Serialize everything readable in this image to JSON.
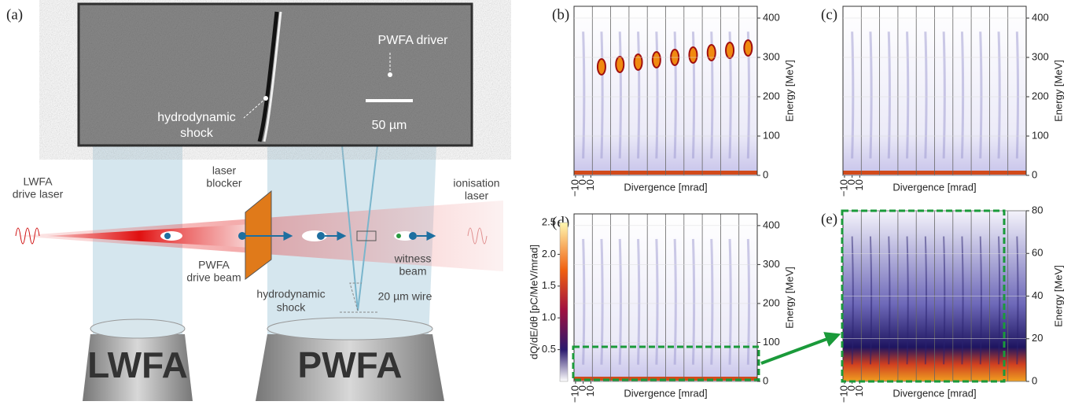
{
  "panel_a": {
    "label": "(a)",
    "inset": {
      "driver": "PWFA driver",
      "shock": [
        "hydrodynamic",
        "shock"
      ],
      "scale": "50 µm"
    },
    "lwfa_laser": [
      "LWFA",
      "drive laser"
    ],
    "blocker": [
      "laser",
      "blocker"
    ],
    "drive_beam": [
      "PWFA",
      "drive beam"
    ],
    "ionisation": [
      "ionisation",
      "laser"
    ],
    "witness": [
      "witness",
      "beam"
    ],
    "shock": [
      "hydrodynamic",
      "shock"
    ],
    "wire": "20 µm wire",
    "stages": [
      "LWFA",
      "PWFA"
    ]
  },
  "panels": [
    {
      "label": "(b)",
      "xlabel": "Divergence [mrad]",
      "ylabel": "Energy [MeV]",
      "ylim": [
        0,
        430
      ],
      "yticks": [
        0,
        100,
        200,
        300,
        400
      ],
      "xlim": [
        -12,
        12
      ],
      "xticks": [
        {
          "value": -10,
          "label": "−10"
        },
        0,
        10
      ]
    },
    {
      "label": "(c)",
      "xlabel": "Divergence [mrad]",
      "ylabel": "Energy [MeV]",
      "ylim": [
        0,
        430
      ],
      "yticks": [
        0,
        100,
        200,
        300,
        400
      ],
      "xlim": [
        -12,
        12
      ],
      "xticks": [
        {
          "value": -10,
          "label": "−10"
        },
        0,
        10
      ]
    },
    {
      "label": "(d)",
      "xlabel": "Divergence [mrad]",
      "ylabel": "Energy [MeV]",
      "ylim": [
        0,
        430
      ],
      "yticks": [
        0,
        100,
        200,
        300,
        400
      ],
      "xlim": [
        -12,
        12
      ],
      "xticks": [
        {
          "value": -10,
          "label": "−10"
        },
        0,
        10
      ]
    },
    {
      "label": "(e)",
      "xlabel": "Divergence [mrad]",
      "ylabel": "Energy [MeV]",
      "ylim": [
        0,
        80
      ],
      "yticks": [
        0,
        20,
        40,
        60,
        80
      ],
      "xlim": [
        -12,
        12
      ],
      "xticks": [
        {
          "value": -10,
          "label": "−10"
        },
        0,
        10
      ]
    }
  ],
  "colorbar": {
    "label": "dQ/dE/dθ [pC/MeV/mrad]",
    "lim": [
      0,
      2.5
    ],
    "ticks": [
      0.5,
      {
        "value": 1.0,
        "label": "1.0"
      },
      1.5,
      {
        "value": 2.0,
        "label": "2.0"
      },
      2.5
    ]
  }
}
